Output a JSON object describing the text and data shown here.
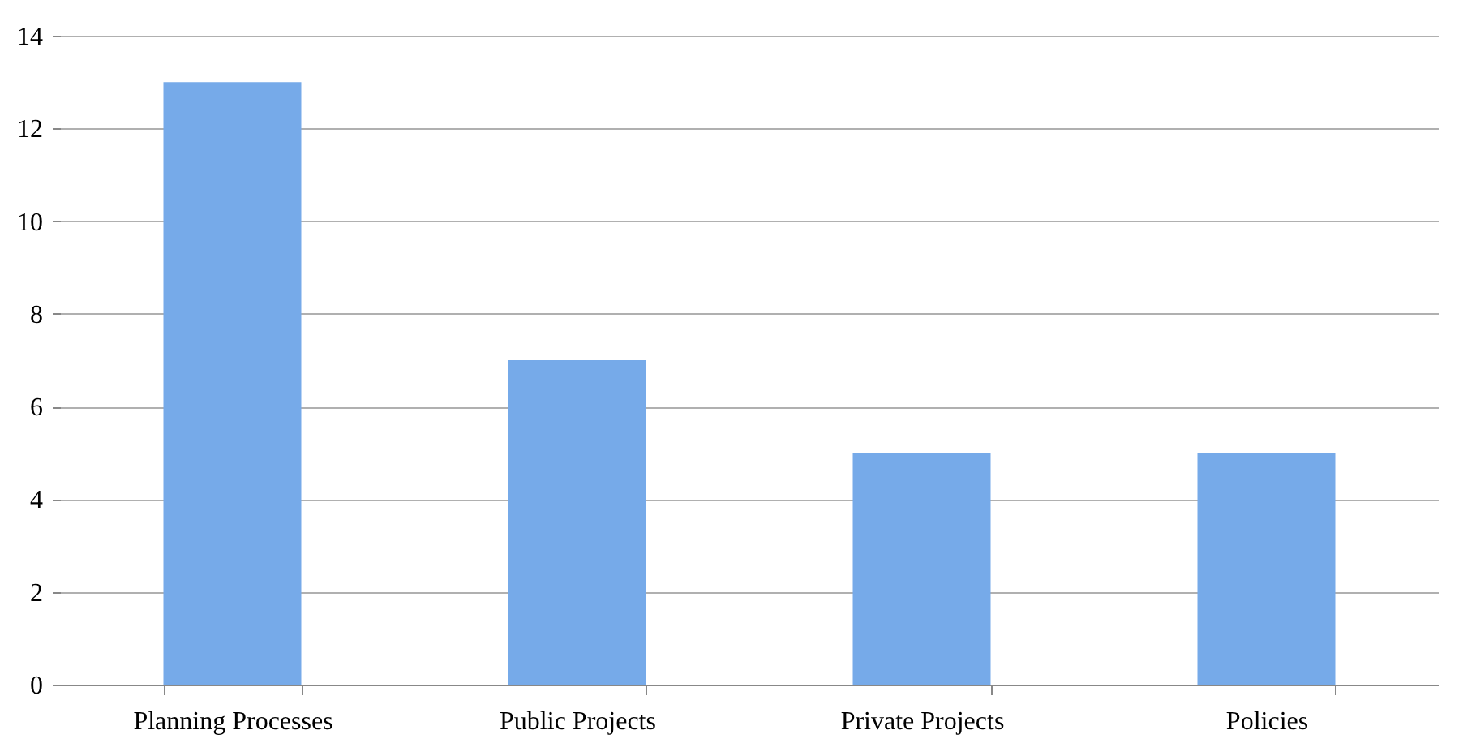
{
  "chart_data": {
    "type": "bar",
    "categories": [
      "Planning Processes",
      "Public Projects",
      "Private Projects",
      "Policies"
    ],
    "values": [
      13,
      7,
      5,
      5
    ],
    "color": "#76aae9",
    "ylim": [
      0,
      14
    ],
    "yticks": [
      0,
      2,
      4,
      6,
      8,
      10,
      12,
      14
    ],
    "grid": "y"
  }
}
